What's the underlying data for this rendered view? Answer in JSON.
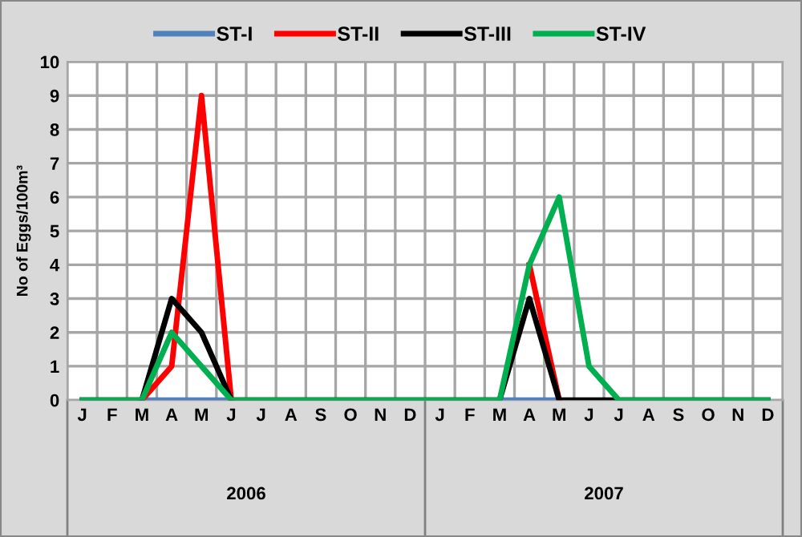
{
  "chart_data": {
    "type": "line",
    "ylabel": "No of Eggs/100m³",
    "categories": [
      "J",
      "F",
      "M",
      "A",
      "M",
      "J",
      "J",
      "A",
      "S",
      "O",
      "N",
      "D",
      "J",
      "F",
      "M",
      "A",
      "M",
      "J",
      "J",
      "A",
      "S",
      "O",
      "N",
      "D"
    ],
    "series": [
      {
        "name": "ST-I",
        "color": "#4f81bd",
        "values": [
          null,
          null,
          0,
          0,
          0,
          0,
          null,
          null,
          null,
          null,
          null,
          null,
          null,
          null,
          0,
          0,
          0,
          null,
          null,
          null,
          null,
          null,
          null,
          null
        ]
      },
      {
        "name": "ST-II",
        "color": "#ff0000",
        "values": [
          null,
          null,
          0,
          1,
          9,
          0,
          null,
          null,
          null,
          null,
          null,
          null,
          null,
          null,
          null,
          4,
          0,
          null,
          null,
          null,
          null,
          null,
          null,
          null
        ]
      },
      {
        "name": "ST-III",
        "color": "#000000",
        "values": [
          0,
          0,
          0,
          3,
          2,
          0,
          0,
          0,
          0,
          0,
          0,
          0,
          0,
          0,
          0,
          3,
          0,
          0,
          0,
          0,
          0,
          0,
          0,
          0
        ]
      },
      {
        "name": "ST-IV",
        "color": "#00b050",
        "values": [
          0,
          0,
          0,
          2,
          1,
          0,
          0,
          0,
          0,
          0,
          0,
          0,
          0,
          0,
          0,
          4,
          6,
          1,
          0,
          0,
          0,
          0,
          0,
          0
        ]
      }
    ],
    "ylim": [
      0,
      10
    ],
    "yticks": [
      0,
      1,
      2,
      3,
      4,
      5,
      6,
      7,
      8,
      9,
      10
    ],
    "grid": true,
    "legend": "top",
    "marker": "none",
    "line_style": "solid",
    "annotations": [
      "2006",
      "2007"
    ]
  }
}
